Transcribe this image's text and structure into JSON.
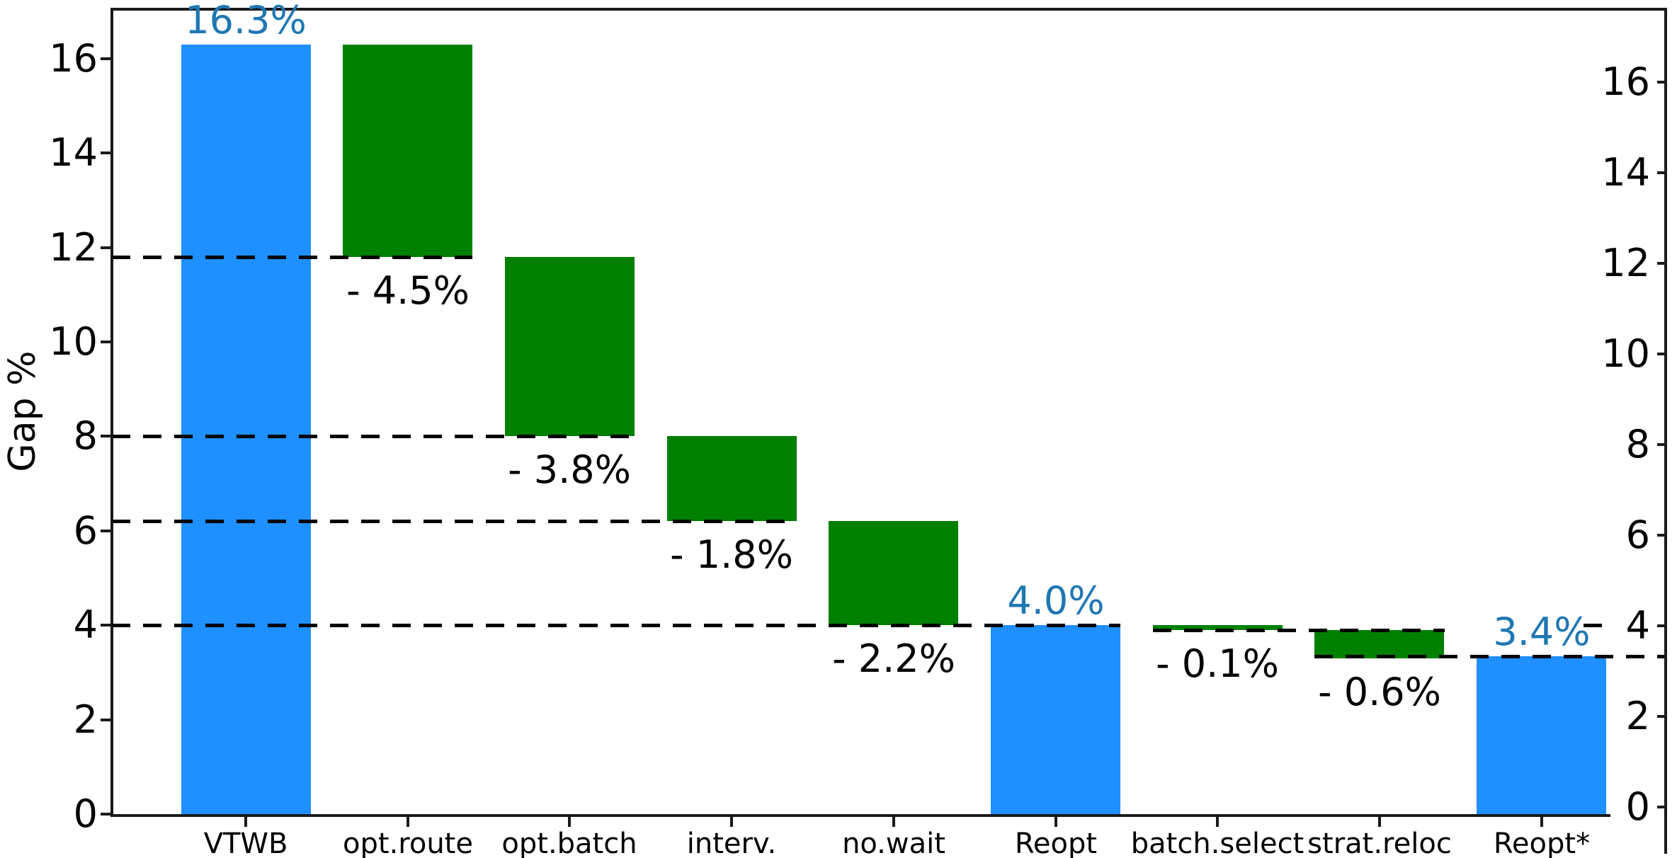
{
  "chart_data": {
    "type": "bar",
    "subtype": "waterfall",
    "title": "",
    "xlabel": "",
    "ylabel": "Gap %",
    "ylim": [
      0,
      17.05
    ],
    "grid": "off",
    "legend": "none",
    "yticks_left": [
      0,
      2,
      4,
      6,
      8,
      10,
      12,
      14,
      16
    ],
    "yticks_right": [
      0,
      2,
      4,
      6,
      8,
      10,
      12,
      14,
      16
    ],
    "categories": [
      "VTWB",
      "opt.route",
      "opt.batch",
      "interv.",
      "no.wait",
      "Reopt",
      "batch.select",
      "strat.reloc",
      "Reopt*"
    ],
    "bars": [
      {
        "category": "VTWB",
        "start": 0,
        "end": 16.3,
        "color_key": "blue",
        "value_label": "16.3%",
        "label_position": "above",
        "label_color_key": "blue_text"
      },
      {
        "category": "opt.route",
        "start": 16.3,
        "end": 11.8,
        "color_key": "green",
        "value_label": "- 4.5%",
        "label_position": "below",
        "label_color_key": "black_text"
      },
      {
        "category": "opt.batch",
        "start": 11.8,
        "end": 8.0,
        "color_key": "green",
        "value_label": "- 3.8%",
        "label_position": "below",
        "label_color_key": "black_text"
      },
      {
        "category": "interv.",
        "start": 8.0,
        "end": 6.2,
        "color_key": "green",
        "value_label": "- 1.8%",
        "label_position": "below",
        "label_color_key": "black_text"
      },
      {
        "category": "no.wait",
        "start": 6.2,
        "end": 4.0,
        "color_key": "green",
        "value_label": "- 2.2%",
        "label_position": "below",
        "label_color_key": "black_text"
      },
      {
        "category": "Reopt",
        "start": 0,
        "end": 4.0,
        "color_key": "blue",
        "value_label": "4.0%",
        "label_position": "above",
        "label_color_key": "blue_text"
      },
      {
        "category": "batch.select",
        "start": 4.0,
        "end": 3.9,
        "color_key": "green",
        "value_label": "- 0.1%",
        "label_position": "below",
        "label_color_key": "black_text"
      },
      {
        "category": "strat.reloc",
        "start": 3.9,
        "end": 3.3,
        "color_key": "green",
        "value_label": "- 0.6%",
        "label_position": "below",
        "label_color_key": "black_text"
      },
      {
        "category": "Reopt*",
        "start": 0,
        "end": 3.35,
        "color_key": "blue",
        "value_label": "3.4%",
        "label_position": "above",
        "label_color_key": "blue_text"
      }
    ],
    "connector_lines": [
      {
        "level": 11.8,
        "from_cat": -0.825,
        "to_cat": 1.4
      },
      {
        "level": 8.0,
        "from_cat": -0.825,
        "to_cat": 2.4
      },
      {
        "level": 6.2,
        "from_cat": -0.825,
        "to_cat": 3.4
      },
      {
        "level": 4.0,
        "from_cat": -0.825,
        "to_cat": 5.4
      },
      {
        "level": 4.0,
        "from_cat": 8.26,
        "to_cat": 8.4
      },
      {
        "level": 3.9,
        "from_cat": 5.6,
        "to_cat": 7.4
      },
      {
        "level": 3.35,
        "from_cat": 6.6,
        "to_cat": 8.76
      }
    ],
    "colors": {
      "blue": "#1e90ff",
      "green": "#008000",
      "blue_text": "#1f77b4",
      "black_text": "#000000",
      "axis": "#1a1a1a"
    }
  }
}
